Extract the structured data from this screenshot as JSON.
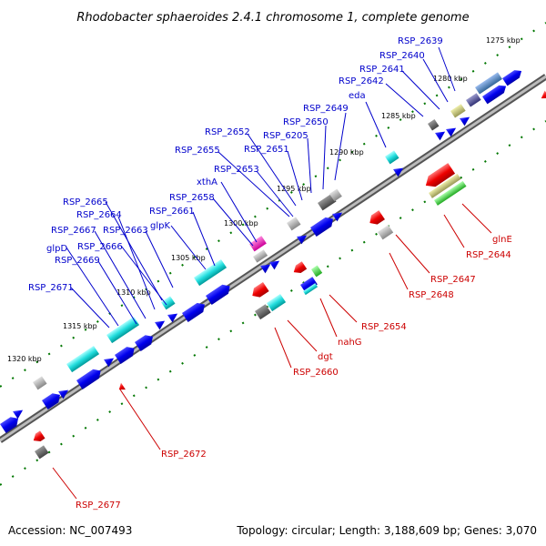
{
  "title": "Rhodobacter sphaeroides 2.4.1 chromosome 1, complete genome",
  "footer": {
    "accession": "Accession: NC_007493",
    "summary": "Topology: circular; Length: 3,188,609 bp; Genes: 3,070"
  },
  "ticks": [
    "1275 kbp",
    "1280 kbp",
    "1285 kbp",
    "1290 kbp",
    "1295 kbp",
    "1300 kbp",
    "1305 kbp",
    "1310 kbp",
    "1315 kbp",
    "1320 kbp"
  ],
  "labels_top": [
    "RSP_2639",
    "RSP_2640",
    "RSP_2641",
    "RSP_2642",
    "eda",
    "RSP_2649",
    "RSP_2650",
    "RSP_6205",
    "RSP_2651",
    "RSP_2652",
    "RSP_2655",
    "RSP_2653",
    "xthA",
    "RSP_2658",
    "RSP_2661",
    "glpK",
    "RSP_2665",
    "RSP_2664",
    "RSP_2667",
    "RSP_2663",
    "glpD",
    "RSP_2666",
    "RSP_2669",
    "RSP_2671"
  ],
  "labels_bottom": [
    "glnE",
    "RSP_2644",
    "RSP_2647",
    "RSP_2648",
    "RSP_2654",
    "nahG",
    "dgt",
    "RSP_2660",
    "RSP_2672",
    "RSP_2677"
  ],
  "colors": {
    "backbone": "#888888",
    "plus_strand_gene": "#0000ee",
    "minus_strand_gene": "#ee0000",
    "label_plus": "#0000cc",
    "label_minus": "#cc0000",
    "tick_dots": "#007700"
  }
}
